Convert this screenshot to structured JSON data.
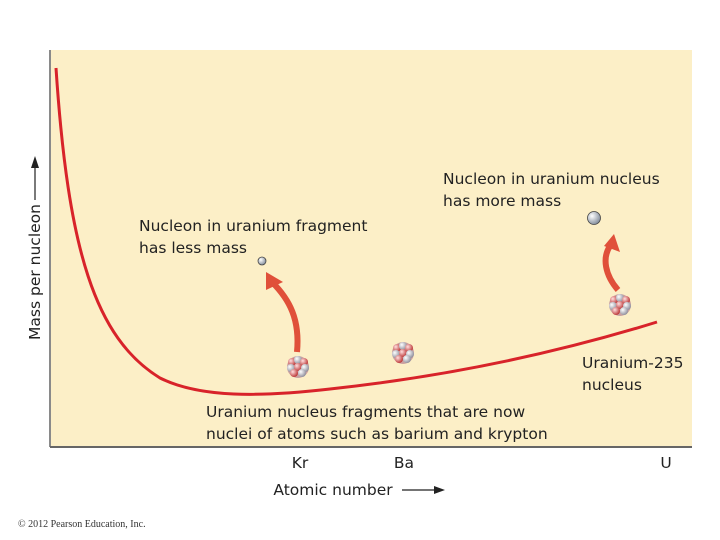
{
  "axes": {
    "y_label": "Mass per nucleon",
    "x_label": "Atomic number",
    "x_markers": [
      "Kr",
      "Ba",
      "U"
    ]
  },
  "annotations": {
    "fragment_nucleon": [
      "Nucleon in uranium fragment",
      "has less mass"
    ],
    "uranium_nucleon": [
      "Nucleon in uranium nucleus",
      "has more mass"
    ],
    "uranium_235": [
      "Uranium-235",
      "nucleus"
    ],
    "fragments": [
      "Uranium nucleus fragments that are now",
      "nuclei of atoms such as barium and krypton"
    ]
  },
  "footer": {
    "copyright": "© 2012 Pearson Education, Inc."
  }
}
